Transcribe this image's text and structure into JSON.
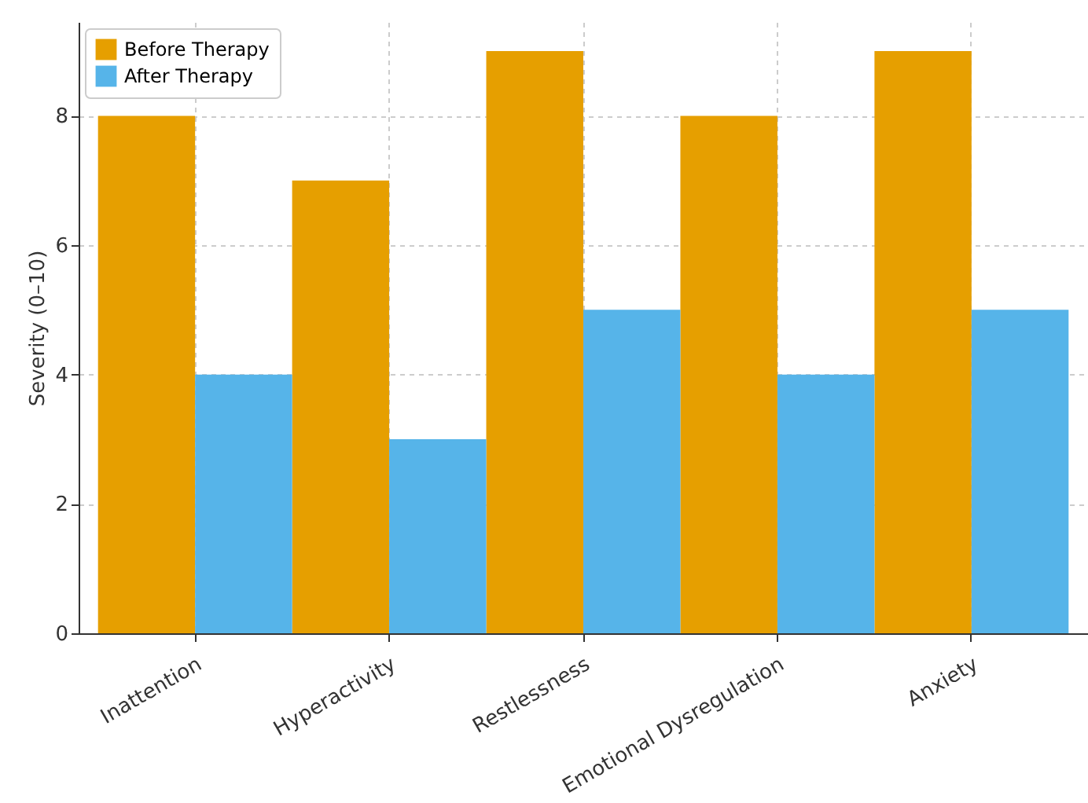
{
  "chart_data": {
    "type": "bar",
    "ylabel": "Severity (0–10)",
    "categories": [
      "Inattention",
      "Hyperactivity",
      "Restlessness",
      "Emotional Dysregulation",
      "Anxiety"
    ],
    "series": [
      {
        "name": "Before Therapy",
        "color": "#e69f00",
        "values": [
          8,
          7,
          9,
          8,
          9
        ]
      },
      {
        "name": "After Therapy",
        "color": "#56b4e9",
        "values": [
          4,
          3,
          5,
          4,
          5
        ]
      }
    ],
    "ylim": [
      0,
      9.45
    ],
    "yticks": [
      0,
      2,
      4,
      6,
      8
    ],
    "grid": true,
    "legend": "top left"
  }
}
